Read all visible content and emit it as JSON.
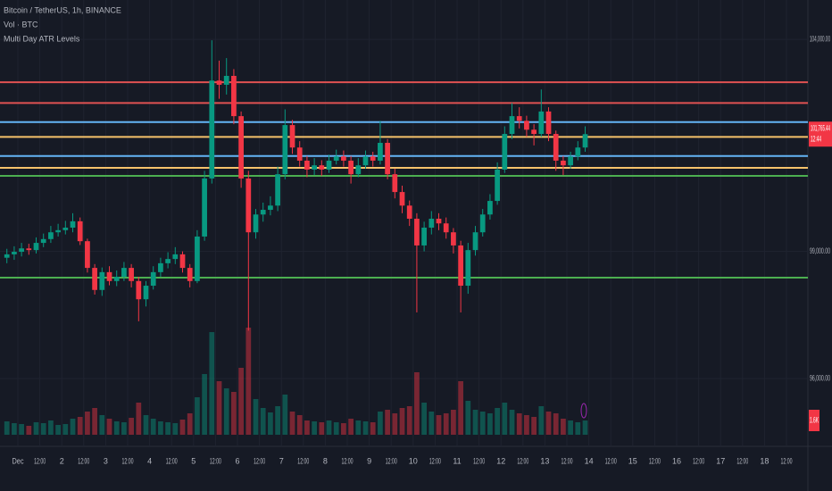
{
  "chart_data": {
    "type": "candlestick",
    "title": "Bitcoin / TetherUS, 1h, BINANCE",
    "subtitles": [
      "Vol · BTC",
      "Multi Day ATR Levels"
    ],
    "x": [
      -8,
      -4,
      0,
      4,
      8,
      12,
      16,
      20,
      24,
      28,
      32,
      36,
      40,
      44,
      48,
      52,
      56,
      60,
      64,
      68,
      72,
      76,
      80,
      84,
      88,
      92,
      96,
      100,
      104,
      108,
      112,
      116,
      120,
      124,
      128,
      132,
      136,
      140,
      144,
      148,
      152,
      156,
      160,
      164,
      168,
      172,
      176,
      180,
      184,
      188,
      192,
      196,
      200,
      204,
      208,
      212,
      216,
      220,
      224,
      228,
      232,
      236,
      240,
      244,
      248,
      252,
      256,
      260,
      264,
      268,
      272,
      276,
      280,
      284,
      288,
      292,
      296,
      300,
      304,
      308
    ],
    "open": [
      98850,
      98930,
      98990,
      99070,
      99030,
      99200,
      99290,
      99450,
      99500,
      99560,
      99710,
      99240,
      98610,
      98090,
      98510,
      98300,
      98400,
      98610,
      98300,
      97870,
      98190,
      98510,
      98720,
      98820,
      98930,
      98610,
      98300,
      99350,
      100720,
      103030,
      102930,
      103140,
      102190,
      100720,
      99450,
      99870,
      99980,
      100080,
      100820,
      101980,
      101450,
      101140,
      100930,
      101030,
      100930,
      101140,
      101240,
      101140,
      100820,
      101030,
      101240,
      101140,
      101560,
      100820,
      100400,
      100080,
      99770,
      99140,
      99560,
      99770,
      99660,
      99450,
      99140,
      98190,
      99030,
      99450,
      99870,
      100190,
      100930,
      101770,
      102190,
      102080,
      101870,
      101770,
      102300,
      101770,
      101140,
      101030,
      101240,
      101450
    ],
    "high": [
      99060,
      99120,
      99200,
      99180,
      99330,
      99420,
      99600,
      99650,
      99720,
      99900,
      99800,
      99300,
      98700,
      98620,
      98650,
      98550,
      98750,
      98700,
      98400,
      98300,
      98650,
      98850,
      98980,
      99100,
      99000,
      98700,
      99500,
      100900,
      103980,
      103500,
      103560,
      103300,
      102300,
      100900,
      100000,
      100150,
      100300,
      101000,
      102350,
      102100,
      101600,
      101250,
      101200,
      101150,
      101280,
      101400,
      101380,
      101250,
      101200,
      101380,
      101350,
      102080,
      101650,
      100950,
      100550,
      100200,
      99900,
      99700,
      99950,
      99900,
      99800,
      99550,
      99250,
      99200,
      99600,
      100000,
      100350,
      101100,
      101950,
      102500,
      102400,
      102200,
      102000,
      102820,
      102400,
      101850,
      101250,
      101350,
      101600,
      101950
    ],
    "low": [
      98720,
      98800,
      98880,
      98920,
      98950,
      99100,
      99200,
      99350,
      99400,
      99450,
      99150,
      98500,
      97980,
      97950,
      98200,
      98180,
      98300,
      98150,
      97350,
      97700,
      98100,
      98400,
      98600,
      98700,
      98500,
      98150,
      98250,
      99250,
      100600,
      102600,
      102700,
      102000,
      100500,
      97130,
      99300,
      99700,
      99850,
      99950,
      100700,
      101300,
      101000,
      100750,
      100800,
      100780,
      100850,
      101050,
      101000,
      100600,
      100750,
      100950,
      101000,
      101050,
      100700,
      100250,
      99900,
      99600,
      97560,
      99000,
      99400,
      99500,
      99300,
      98950,
      97560,
      98000,
      98900,
      99350,
      99750,
      100100,
      100850,
      101650,
      101900,
      101700,
      101500,
      101700,
      101600,
      100900,
      100800,
      100950,
      101150,
      101350
    ],
    "close": [
      98930,
      98990,
      99070,
      99030,
      99200,
      99290,
      99450,
      99500,
      99560,
      99710,
      99240,
      98610,
      98090,
      98510,
      98300,
      98400,
      98610,
      98300,
      97870,
      98190,
      98510,
      98720,
      98820,
      98930,
      98610,
      98300,
      99350,
      100720,
      103030,
      102930,
      103140,
      102190,
      100720,
      99450,
      99870,
      99980,
      100080,
      100820,
      101980,
      101450,
      101140,
      100930,
      101030,
      100930,
      101140,
      101240,
      101140,
      100820,
      101030,
      101240,
      101140,
      101560,
      100820,
      100400,
      100080,
      99770,
      99140,
      99560,
      99770,
      99660,
      99450,
      99140,
      98190,
      99030,
      99450,
      99870,
      100190,
      100930,
      101770,
      102190,
      102080,
      101870,
      101770,
      102300,
      101770,
      101140,
      101030,
      101240,
      101450,
      101765.44
    ],
    "volume": [
      1500,
      1300,
      1200,
      1000,
      1400,
      1300,
      1600,
      1100,
      1200,
      1800,
      2000,
      2600,
      3000,
      2200,
      1800,
      1500,
      1400,
      1900,
      3600,
      2200,
      1800,
      1500,
      1400,
      1300,
      1700,
      2400,
      4200,
      6800,
      11500,
      6000,
      5200,
      4800,
      7500,
      12000,
      4000,
      3000,
      2500,
      3200,
      4500,
      2600,
      2200,
      1600,
      1500,
      1400,
      1600,
      1400,
      1300,
      1800,
      1600,
      1500,
      1400,
      2600,
      2800,
      2400,
      3000,
      3200,
      7000,
      3600,
      2600,
      2200,
      2400,
      2800,
      6000,
      3800,
      2800,
      2600,
      2400,
      3000,
      3600,
      2800,
      2400,
      2200,
      2000,
      3200,
      2600,
      2400,
      1800,
      1600,
      1400,
      1600
    ],
    "up_color": "#089981",
    "down_color": "#f23645",
    "xlim": [
      -9.76,
      431.7
    ],
    "xticks": [
      {
        "value": 0,
        "label": "Dec"
      },
      {
        "value": 12,
        "label": "12:00"
      },
      {
        "value": 24,
        "label": "2"
      },
      {
        "value": 36,
        "label": "12:00"
      },
      {
        "value": 48,
        "label": "3"
      },
      {
        "value": 60,
        "label": "12:00"
      },
      {
        "value": 72,
        "label": "4"
      },
      {
        "value": 84,
        "label": "12:00"
      },
      {
        "value": 96,
        "label": "5"
      },
      {
        "value": 108,
        "label": "12:00"
      },
      {
        "value": 120,
        "label": "6"
      },
      {
        "value": 132,
        "label": "12:00"
      },
      {
        "value": 144,
        "label": "7"
      },
      {
        "value": 156,
        "label": "12:00"
      },
      {
        "value": 168,
        "label": "8"
      },
      {
        "value": 180,
        "label": "12:00"
      },
      {
        "value": 192,
        "label": "9"
      },
      {
        "value": 204,
        "label": "12:00"
      },
      {
        "value": 216,
        "label": "10"
      },
      {
        "value": 228,
        "label": "12:00"
      },
      {
        "value": 240,
        "label": "11"
      },
      {
        "value": 252,
        "label": "12:00"
      },
      {
        "value": 264,
        "label": "12"
      },
      {
        "value": 276,
        "label": "12:00"
      },
      {
        "value": 288,
        "label": "13"
      },
      {
        "value": 300,
        "label": "12:00"
      },
      {
        "value": 312,
        "label": "14"
      },
      {
        "value": 324,
        "label": "12:00"
      },
      {
        "value": 336,
        "label": "15"
      },
      {
        "value": 348,
        "label": "12:00"
      },
      {
        "value": 360,
        "label": "16"
      },
      {
        "value": 372,
        "label": "12:00"
      },
      {
        "value": 384,
        "label": "17"
      },
      {
        "value": 396,
        "label": "12:00"
      },
      {
        "value": 408,
        "label": "18"
      },
      {
        "value": 420,
        "label": "12:00"
      }
    ],
    "ylim": [
      94400,
      104930
    ],
    "yticks": [
      {
        "value": 104000,
        "label": "104,000.00"
      },
      {
        "value": 99000,
        "label": "99,000.00"
      },
      {
        "value": 96000,
        "label": "96,000.00"
      }
    ],
    "vlim": [
      0,
      13000
    ],
    "levels": [
      {
        "value": 102990,
        "color": "#e05252"
      },
      {
        "value": 102500,
        "color": "#e05252"
      },
      {
        "value": 102050,
        "color": "#64b5f6"
      },
      {
        "value": 101700,
        "color": "#f5c26b"
      },
      {
        "value": 101250,
        "color": "#64b5f6"
      },
      {
        "value": 100970,
        "color": "#f5c26b"
      },
      {
        "value": 100780,
        "color": "#4caf50"
      },
      {
        "value": 98380,
        "color": "#4caf50"
      }
    ],
    "last_label": "101,765.44",
    "countdown": "12:44",
    "last_volume_label": "1.6K",
    "grid": true
  }
}
